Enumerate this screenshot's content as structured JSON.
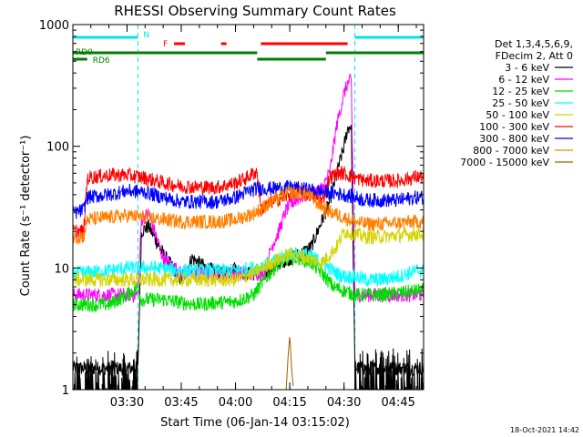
{
  "chart_data": {
    "type": "line",
    "title": "RHESSI Observing Summary Count Rates",
    "xlabel": "Start Time (06-Jan-14 03:15:02)",
    "ylabel": "Count Rate (s⁻¹ detector⁻¹)",
    "yscale": "log",
    "ylim": [
      1,
      1000
    ],
    "xlim": [
      "03:15:02",
      "04:52:00"
    ],
    "x_ticks": [
      "03:30",
      "03:45",
      "04:00",
      "04:15",
      "04:30",
      "04:45"
    ],
    "y_ticks": [
      "1",
      "10",
      "100",
      "1000"
    ],
    "legend_header": [
      "Det 1,3,4,5,6,9,",
      "FDecim 2, Att 0"
    ],
    "legend_position": "right",
    "timestamp": "18-Oct-2021 14:42",
    "night_intervals": [
      [
        "03:15:02",
        "03:33:00"
      ],
      [
        "04:33:00",
        "04:52:00"
      ]
    ],
    "flags": {
      "N_label": "N",
      "F_label": "F",
      "RD0_label": "RD0",
      "RD6_label": "RD6",
      "N_color": "#00e5e5",
      "F_color": "#ff0000",
      "RD_color": "#008000",
      "N_segments": [
        [
          "03:15:02",
          "03:33:00"
        ],
        [
          "04:33:00",
          "04:52:00"
        ]
      ],
      "F_segments": [
        [
          "03:43:00",
          "03:46:00"
        ],
        [
          "03:56:00",
          "03:57:30"
        ],
        [
          "04:07:00",
          "04:31:00"
        ]
      ],
      "RD0_segments": [
        [
          "03:15:02",
          "03:33:00"
        ],
        [
          "03:33:00",
          "04:06:00"
        ],
        [
          "04:25:00",
          "04:52:00"
        ]
      ],
      "RD6_segments": [
        [
          "03:15:02",
          "03:19:00"
        ],
        [
          "04:06:00",
          "04:25:00"
        ]
      ]
    },
    "series": [
      {
        "name": "3 - 6 keV",
        "color": "#000000",
        "x": [
          "03:15",
          "03:33",
          "03:34",
          "03:36",
          "03:40",
          "03:45",
          "03:48",
          "03:52",
          "03:56",
          "04:00",
          "04:03",
          "04:05",
          "04:08",
          "04:12",
          "04:15",
          "04:18",
          "04:21",
          "04:24",
          "04:26",
          "04:28",
          "04:30",
          "04:31",
          "04:32",
          "04:33",
          "04:36",
          "04:40",
          "04:45",
          "04:50",
          "04:52"
        ],
        "y": [
          1.5,
          1.5,
          20,
          22,
          13,
          8,
          12,
          10,
          9,
          10,
          9,
          9,
          9,
          11,
          12,
          13,
          15,
          25,
          35,
          60,
          100,
          140,
          150,
          1.5,
          1.5,
          1.5,
          1.5,
          1.5,
          1.5
        ]
      },
      {
        "name": "6 - 12 keV",
        "color": "#ff00ff",
        "x": [
          "03:15",
          "03:33",
          "03:34",
          "03:36",
          "03:40",
          "03:45",
          "03:50",
          "03:55",
          "04:00",
          "04:05",
          "04:08",
          "04:10",
          "04:12",
          "04:14",
          "04:16",
          "04:18",
          "04:20",
          "04:24",
          "04:26",
          "04:28",
          "04:30",
          "04:31",
          "04:32",
          "04:33",
          "04:36",
          "04:40",
          "04:45",
          "04:50",
          "04:52"
        ],
        "y": [
          6,
          6,
          25,
          28,
          12,
          9,
          9,
          9,
          9,
          9,
          9,
          15,
          20,
          30,
          35,
          38,
          40,
          45,
          60,
          150,
          270,
          330,
          350,
          6,
          6,
          6,
          6,
          6,
          6
        ]
      },
      {
        "name": "12 - 25 keV",
        "color": "#00dd00",
        "x": [
          "03:15",
          "03:25",
          "03:30",
          "03:33",
          "03:34",
          "03:40",
          "03:45",
          "03:50",
          "03:55",
          "04:00",
          "04:05",
          "04:08",
          "04:12",
          "04:15",
          "04:18",
          "04:21",
          "04:24",
          "04:27",
          "04:30",
          "04:33",
          "04:36",
          "04:40",
          "04:45",
          "04:50",
          "04:52"
        ],
        "y": [
          5,
          5,
          6,
          7,
          5.5,
          5.5,
          5.2,
          5,
          5.2,
          5.3,
          6,
          8,
          11,
          12,
          12,
          11,
          9,
          7,
          6.5,
          6,
          6,
          6,
          6.2,
          6.5,
          6.5
        ]
      },
      {
        "name": "25 - 50 keV",
        "color": "#00ffff",
        "x": [
          "03:15",
          "03:25",
          "03:30",
          "03:33",
          "03:38",
          "03:45",
          "03:50",
          "03:55",
          "04:00",
          "04:05",
          "04:10",
          "04:15",
          "04:20",
          "04:24",
          "04:28",
          "04:30",
          "04:33",
          "04:36",
          "04:40",
          "04:45",
          "04:50",
          "04:52"
        ],
        "y": [
          9,
          9.5,
          10,
          10,
          10,
          9.5,
          9.5,
          9.5,
          9.5,
          10,
          11,
          13,
          13,
          11,
          9,
          8.5,
          8.5,
          8,
          8,
          8.5,
          9.5,
          9.5
        ]
      },
      {
        "name": "50 - 100 keV",
        "color": "#d4d400",
        "x": [
          "03:15",
          "03:25",
          "03:30",
          "03:33",
          "03:38",
          "03:45",
          "03:50",
          "03:55",
          "04:00",
          "04:05",
          "04:10",
          "04:15",
          "04:20",
          "04:24",
          "04:28",
          "04:30",
          "04:33",
          "04:36",
          "04:40",
          "04:45",
          "04:50",
          "04:52"
        ],
        "y": [
          8,
          8,
          8,
          8,
          8,
          8,
          8,
          8,
          8,
          9,
          11,
          13,
          12,
          11,
          15,
          20,
          19,
          18,
          18,
          18.5,
          19,
          19
        ]
      },
      {
        "name": "100 - 300 keV",
        "color": "#ff0000",
        "x": [
          "03:15",
          "03:18",
          "03:19",
          "03:25",
          "03:30",
          "03:35",
          "03:40",
          "03:45",
          "03:50",
          "03:55",
          "04:00",
          "04:03",
          "04:05",
          "04:06",
          "04:07",
          "04:10",
          "04:15",
          "04:18",
          "04:21",
          "04:24",
          "04:26",
          "04:28",
          "04:30",
          "04:33",
          "04:36",
          "04:40",
          "04:45",
          "04:50",
          "04:52"
        ],
        "y": [
          20,
          20,
          55,
          58,
          58,
          55,
          50,
          47,
          46,
          46,
          50,
          55,
          60,
          62,
          30,
          35,
          40,
          42,
          40,
          35,
          55,
          60,
          60,
          55,
          52,
          52,
          52,
          56,
          56
        ]
      },
      {
        "name": "300 - 800 keV",
        "color": "#0000ff",
        "x": [
          "03:15",
          "03:18",
          "03:19",
          "03:25",
          "03:30",
          "03:35",
          "03:40",
          "03:45",
          "03:50",
          "03:55",
          "04:00",
          "04:03",
          "04:06",
          "04:10",
          "04:15",
          "04:20",
          "04:25",
          "04:30",
          "04:33",
          "04:36",
          "04:40",
          "04:45",
          "04:50",
          "04:52"
        ],
        "y": [
          28,
          30,
          38,
          40,
          43,
          42,
          38,
          35,
          35,
          35,
          38,
          42,
          45,
          45,
          46,
          44,
          42,
          40,
          38,
          36,
          36,
          36,
          38,
          38
        ]
      },
      {
        "name": "800 - 7000 keV",
        "color": "#ff8000",
        "x": [
          "03:15",
          "03:18",
          "03:19",
          "03:25",
          "03:30",
          "03:35",
          "03:40",
          "03:45",
          "03:50",
          "03:55",
          "04:00",
          "04:05",
          "04:10",
          "04:15",
          "04:20",
          "04:25",
          "04:30",
          "04:33",
          "04:36",
          "04:40",
          "04:45",
          "04:50",
          "04:52"
        ],
        "y": [
          18,
          18,
          25,
          26,
          27,
          26,
          25,
          24,
          24,
          24,
          25,
          28,
          35,
          42,
          40,
          30,
          26,
          24,
          23,
          23,
          23.5,
          24,
          24
        ]
      },
      {
        "name": "7000 - 15000 keV",
        "color": "#a06000",
        "x": [
          "04:14",
          "04:14:30",
          "04:15",
          "04:15:30",
          "04:16"
        ],
        "y": [
          1,
          1.8,
          2.8,
          1.5,
          1
        ]
      }
    ]
  }
}
